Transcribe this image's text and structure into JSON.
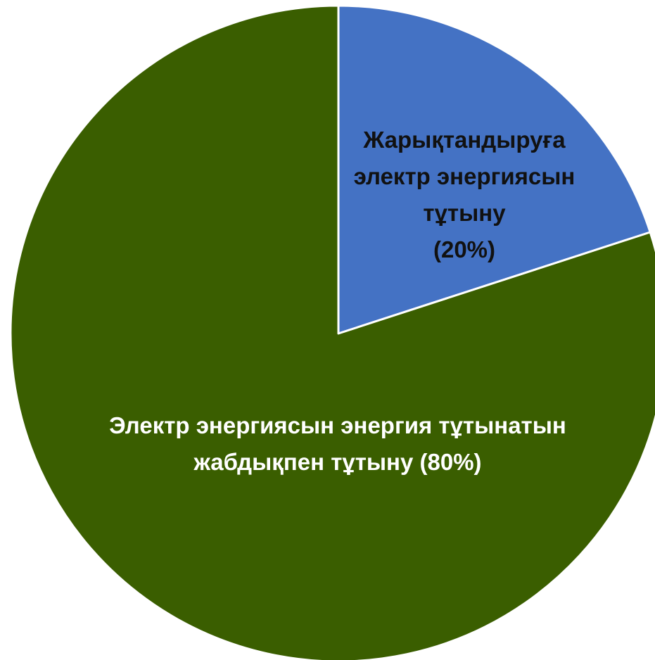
{
  "chart_data": {
    "type": "pie",
    "start_angle_deg": 0,
    "direction": "clockwise",
    "slices": [
      {
        "label_lines": [
          "Жарықтандыруға",
          "электр энергиясын",
          "тұтыну",
          "(20%)"
        ],
        "value": 20,
        "color": "#4472C4",
        "label_color": "#111111"
      },
      {
        "label_lines": [
          "Электр энергиясын энергия тұтынатын",
          "жабдықпен тұтыну (80%)"
        ],
        "value": 80,
        "color": "#3A5E00",
        "label_color": "#FFFFFF"
      }
    ],
    "slice_border_color": "#FFFFFF"
  }
}
